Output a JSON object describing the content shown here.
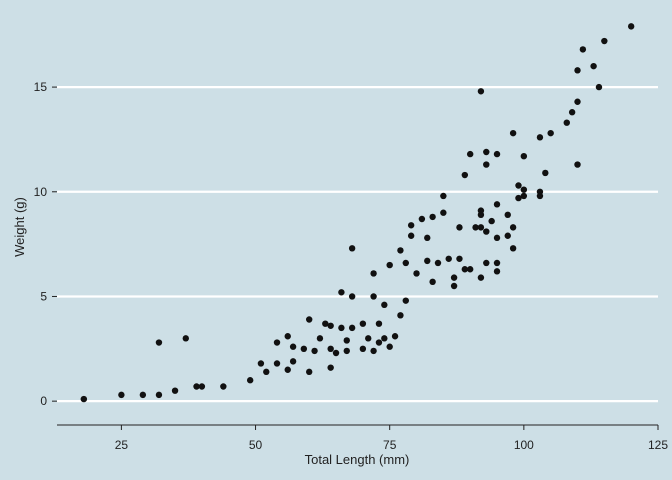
{
  "chart_data": {
    "type": "scatter",
    "title": "",
    "xlabel": "Total Length (mm)",
    "ylabel": "Weight (g)",
    "xlim": [
      13,
      125
    ],
    "ylim": [
      -0.9,
      18.3
    ],
    "x_ticks": [
      25,
      50,
      75,
      100,
      125
    ],
    "y_ticks": [
      0,
      5,
      10,
      15
    ],
    "grid": "horizontal major lines",
    "colors": {
      "background": "#cddfe6",
      "gridline": "#ffffff",
      "point": "#111111"
    },
    "series": [
      {
        "points": [
          [
            18,
            0.1
          ],
          [
            25,
            0.3
          ],
          [
            29,
            0.3
          ],
          [
            32,
            0.3
          ],
          [
            32,
            2.8
          ],
          [
            35,
            0.5
          ],
          [
            37,
            3.0
          ],
          [
            39,
            0.7
          ],
          [
            40,
            0.7
          ],
          [
            44,
            0.7
          ],
          [
            49,
            1.0
          ],
          [
            51,
            1.8
          ],
          [
            52,
            1.4
          ],
          [
            54,
            1.8
          ],
          [
            54,
            2.8
          ],
          [
            56,
            3.1
          ],
          [
            56,
            1.5
          ],
          [
            57,
            1.9
          ],
          [
            57,
            2.6
          ],
          [
            59,
            2.5
          ],
          [
            60,
            1.4
          ],
          [
            60,
            3.9
          ],
          [
            61,
            2.4
          ],
          [
            62,
            3.0
          ],
          [
            63,
            3.7
          ],
          [
            64,
            2.5
          ],
          [
            64,
            1.6
          ],
          [
            64,
            3.6
          ],
          [
            65,
            2.3
          ],
          [
            66,
            3.5
          ],
          [
            66,
            5.2
          ],
          [
            67,
            2.9
          ],
          [
            67,
            2.4
          ],
          [
            68,
            3.5
          ],
          [
            68,
            5.0
          ],
          [
            68,
            7.3
          ],
          [
            70,
            3.7
          ],
          [
            70,
            2.5
          ],
          [
            71,
            3.0
          ],
          [
            72,
            2.4
          ],
          [
            72,
            5.0
          ],
          [
            72,
            6.1
          ],
          [
            73,
            2.8
          ],
          [
            73,
            3.7
          ],
          [
            74,
            4.6
          ],
          [
            74,
            3.0
          ],
          [
            75,
            2.6
          ],
          [
            75,
            6.5
          ],
          [
            76,
            3.1
          ],
          [
            77,
            4.1
          ],
          [
            77,
            7.2
          ],
          [
            78,
            4.8
          ],
          [
            78,
            6.6
          ],
          [
            79,
            7.9
          ],
          [
            79,
            8.4
          ],
          [
            80,
            6.1
          ],
          [
            81,
            8.7
          ],
          [
            82,
            6.7
          ],
          [
            82,
            7.8
          ],
          [
            83,
            8.8
          ],
          [
            83,
            5.7
          ],
          [
            84,
            6.6
          ],
          [
            85,
            9.0
          ],
          [
            85,
            9.8
          ],
          [
            86,
            6.8
          ],
          [
            87,
            5.9
          ],
          [
            87,
            5.5
          ],
          [
            88,
            8.3
          ],
          [
            88,
            6.8
          ],
          [
            89,
            10.8
          ],
          [
            89,
            6.3
          ],
          [
            90,
            6.3
          ],
          [
            90,
            11.8
          ],
          [
            91,
            8.3
          ],
          [
            92,
            8.3
          ],
          [
            92,
            14.8
          ],
          [
            92,
            8.9
          ],
          [
            92,
            9.1
          ],
          [
            92,
            5.9
          ],
          [
            93,
            6.6
          ],
          [
            93,
            11.3
          ],
          [
            93,
            11.9
          ],
          [
            93,
            8.1
          ],
          [
            94,
            8.6
          ],
          [
            95,
            7.8
          ],
          [
            95,
            6.6
          ],
          [
            95,
            6.2
          ],
          [
            95,
            9.4
          ],
          [
            95,
            11.8
          ],
          [
            97,
            7.9
          ],
          [
            97,
            8.9
          ],
          [
            98,
            8.3
          ],
          [
            98,
            7.3
          ],
          [
            98,
            12.8
          ],
          [
            99,
            9.7
          ],
          [
            99,
            10.3
          ],
          [
            100,
            10.1
          ],
          [
            100,
            11.7
          ],
          [
            100,
            9.8
          ],
          [
            103,
            12.6
          ],
          [
            103,
            10.0
          ],
          [
            103,
            9.8
          ],
          [
            104,
            10.9
          ],
          [
            105,
            12.8
          ],
          [
            108,
            13.3
          ],
          [
            109,
            13.8
          ],
          [
            110,
            11.3
          ],
          [
            110,
            14.3
          ],
          [
            110,
            15.8
          ],
          [
            111,
            16.8
          ],
          [
            113,
            16.0
          ],
          [
            114,
            15.0
          ],
          [
            115,
            17.2
          ],
          [
            120,
            17.9
          ]
        ]
      }
    ]
  }
}
